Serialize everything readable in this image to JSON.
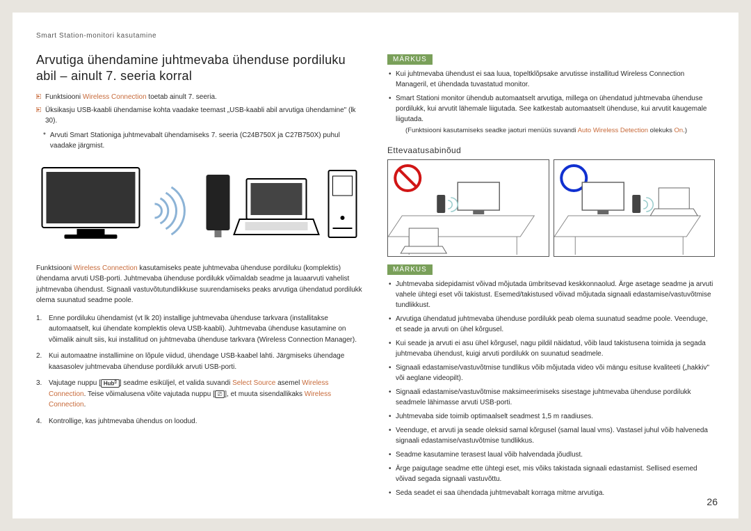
{
  "chapter": "Smart Station-monitori kasutamine",
  "pagenum": "26",
  "left": {
    "heading": "Arvutiga ühendamine juhtmevaba ühenduse pordiluku abil – ainult 7. seeria korral",
    "b1_pre": "Funktsiooni ",
    "b1_accent": "Wireless Connection",
    "b1_post": " toetab ainult 7. seeria.",
    "b2": "Üksikasju USB-kaabli ühendamise kohta vaadake teemast „USB-kaabli abil arvutiga ühendamine\" (lk 30).",
    "star": "Arvuti Smart Stationiga juhtmevabalt ühendamiseks 7. seeria (C24B750X ja C27B750X) puhul vaadake järgmist.",
    "para_pre": "Funktsiooni ",
    "para_accent": "Wireless Connection",
    "para_post": " kasutamiseks peate juhtmevaba ühenduse pordiluku (komplektis) ühendama arvuti USB-porti. Juhtmevaba ühenduse pordilukk võimaldab seadme ja lauaarvuti vahelist juhtmevaba ühendust. Signaali vastuvõtutundlikkuse suurendamiseks peaks arvutiga ühendatud pordilukk olema suunatud seadme poole.",
    "li1": "Enne pordiluku ühendamist (vt lk 20) installige juhtmevaba ühenduse tarkvara (installitakse automaatselt, kui ühendate komplektis oleva USB-kaabli). Juhtmevaba ühenduse kasutamine on võimalik ainult siis, kui installitud on juhtmevaba ühenduse tarkvara (Wireless Connection Manager).",
    "li2": "Kui automaatne installimine on lõpule viidud, ühendage USB-kaabel lahti. Järgmiseks ühendage kaasasolev juhtmevaba ühenduse pordilukk arvuti USB-porti.",
    "li3_a": "Vajutage nuppu [",
    "li3_b": "] seadme esiküljel, et valida suvandi ",
    "li3_c": "Select Source",
    "li3_d": " asemel ",
    "li3_e": "Wireless Connection",
    "li3_f": ". Teise võimalusena võite vajutada nuppu [",
    "li3_g": "], et muuta sisendallikaks ",
    "li3_h": "Wireless Connection",
    "li3_i": ".",
    "li4": "Kontrollige, kas juhtmevaba ühendus on loodud."
  },
  "right": {
    "note1_label": "MÄRKUS",
    "n1_li1": "Kui juhtmevaba ühendust ei saa luua, topeltklõpsake arvutisse installitud Wireless Connection Manageril, et ühendada tuvastatud monitor.",
    "n1_li2": "Smart Stationi monitor ühendub automaatselt arvutiga, millega on ühendatud juhtmevaba ühenduse pordilukk, kui arvutit lähemale liigutada. See katkestab automaatselt ühenduse, kui arvutit kaugemale liigutada.",
    "n1_sub_a": "(Funktsiooni kasutamiseks seadke jaoturi menüüs suvandi ",
    "n1_sub_b": "Auto Wireless Detection",
    "n1_sub_c": " olekuks ",
    "n1_sub_d": "On",
    "n1_sub_e": ".)",
    "precautions": "Ettevaatusabinõud",
    "note2_label": "MÄRKUS",
    "n2": [
      "Juhtmevaba sidepidamist võivad mõjutada ümbritsevad keskkonnaolud. Ärge asetage seadme ja arvuti vahele ühtegi eset või takistust. Esemed/takistused võivad mõjutada signaali edastamise/vastuvõtmise tundlikkust.",
      "Arvutiga ühendatud juhtmevaba ühenduse pordilukk peab olema suunatud seadme poole. Veenduge, et seade ja arvuti on ühel kõrgusel.",
      "Kui seade ja arvuti ei asu ühel kõrgusel, nagu pildil näidatud, võib laud takistusena toimida ja segada juhtmevaba ühendust, kuigi arvuti pordilukk on suunatud seadmele.",
      "Signaali edastamise/vastuvõtmise tundlikus võib mõjutada video või mängu esituse kvaliteeti („hakkiv\" või aeglane videopilt).",
      "Signaali edastamise/vastuvõtmise maksimeerimiseks sisestage juhtmevaba ühenduse pordilukk seadmele lähimasse arvuti USB-porti.",
      "Juhtmevaba side toimib optimaalselt seadmest 1,5 m raadiuses.",
      "Veenduge, et arvuti ja seade oleksid samal kõrgusel (samal laual vms). Vastasel juhul võib halveneda signaali edastamise/vastuvõtmise tundlikkus.",
      "Seadme kasutamine terasest laual võib halvendada jõudlust.",
      "Ärge paigutage seadme ette ühtegi eset, mis võiks takistada signaali edastamist. Sellised esemed võivad segada signaali vastuvõttu.",
      "Seda seadet ei saa ühendada juhtmevabalt korraga mitme arvutiga."
    ]
  },
  "colors": {
    "accent": "#c76a3a",
    "chip": "#7aa05a",
    "red": "#d11515",
    "blue": "#1030d0"
  }
}
